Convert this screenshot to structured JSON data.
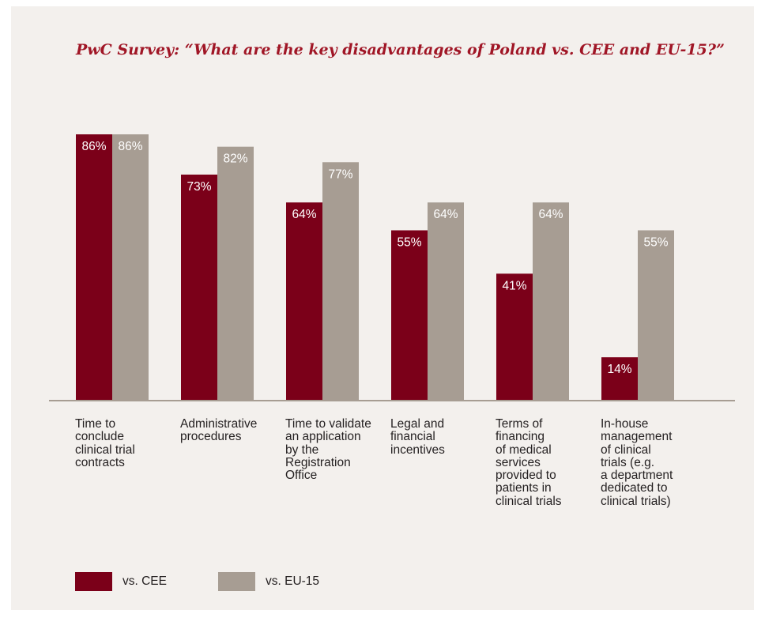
{
  "chart_data": {
    "type": "bar",
    "title": "PwC Survey: “What are the key disadvantages of Poland vs. CEE and EU-15?”",
    "categories": [
      [
        "Time to",
        "conclude",
        "clinical trial",
        "contracts"
      ],
      [
        "Administrative",
        "procedures"
      ],
      [
        "Time to validate",
        "an application",
        "by the",
        "Registration",
        "Office"
      ],
      [
        "Legal and",
        "financial",
        "incentives"
      ],
      [
        "Terms of",
        "financing",
        "of medical",
        "services",
        "provided to",
        "patients in",
        "clinical trials"
      ],
      [
        "In-house",
        "management",
        "of clinical",
        "trials (e.g.",
        "a department",
        "dedicated to",
        "clinical trials)"
      ]
    ],
    "series": [
      {
        "name": "vs. CEE",
        "color": "#7b0019",
        "values": [
          86,
          73,
          64,
          55,
          41,
          14
        ],
        "labels": [
          "86%",
          "73%",
          "64%",
          "55%",
          "41%",
          "14%"
        ]
      },
      {
        "name": "vs. EU-15",
        "color": "#a79d93",
        "values": [
          86,
          82,
          77,
          64,
          64,
          55
        ],
        "labels": [
          "86%",
          "82%",
          "77%",
          "64%",
          "64%",
          "55%"
        ]
      }
    ],
    "ylim": [
      0,
      100
    ],
    "grid": false,
    "legend": "bottom-left",
    "value_label_color": "#ffffff",
    "baseline_color": "#a79d93"
  }
}
